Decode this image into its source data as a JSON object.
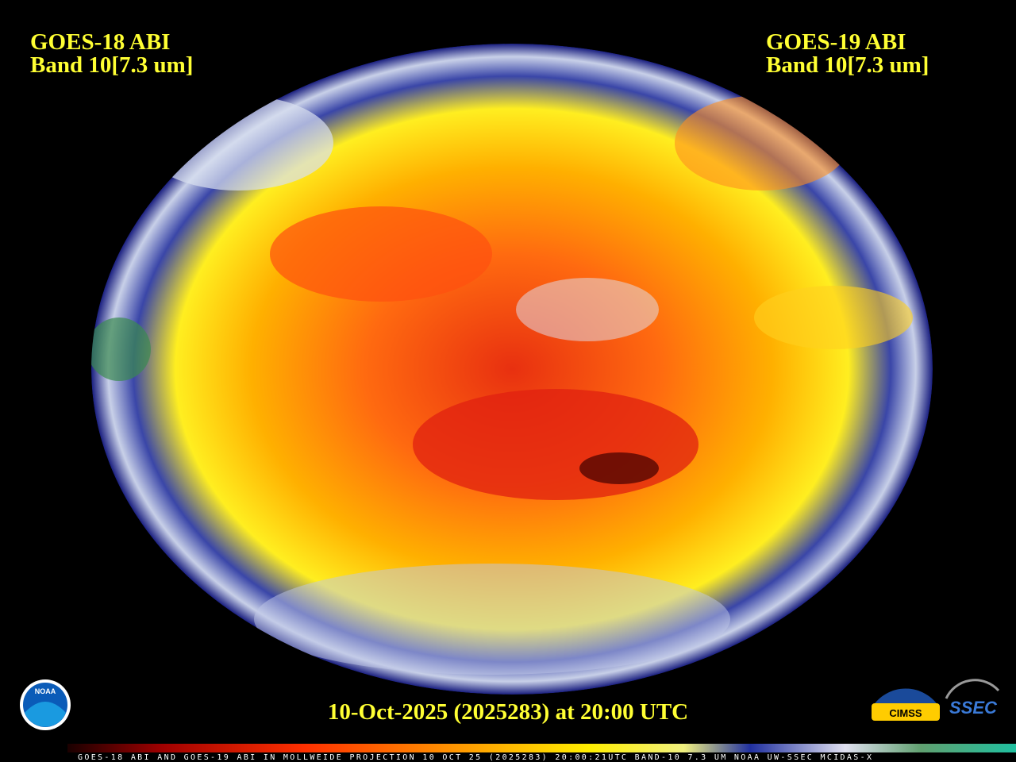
{
  "labels": {
    "left": {
      "line1": "GOES-18 ABI",
      "line2": "Band 10[7.3 um]"
    },
    "right": {
      "line1": "GOES-19 ABI",
      "line2": "Band 10[7.3 um]"
    }
  },
  "timestamp": "10-Oct-2025 (2025283) at 20:00 UTC",
  "colorbar": {
    "caption": "GOES-18 ABI AND GOES-19 ABI IN MOLLWEIDE PROJECTION 10 OCT 25 (2025283) 20:00:21UTC BAND-10 7.3 UM NOAA UW-SSEC MCIDAS-X"
  },
  "logos": {
    "noaa": "NOAA",
    "cimss": "CIMSS",
    "ssec": "SSEC"
  }
}
